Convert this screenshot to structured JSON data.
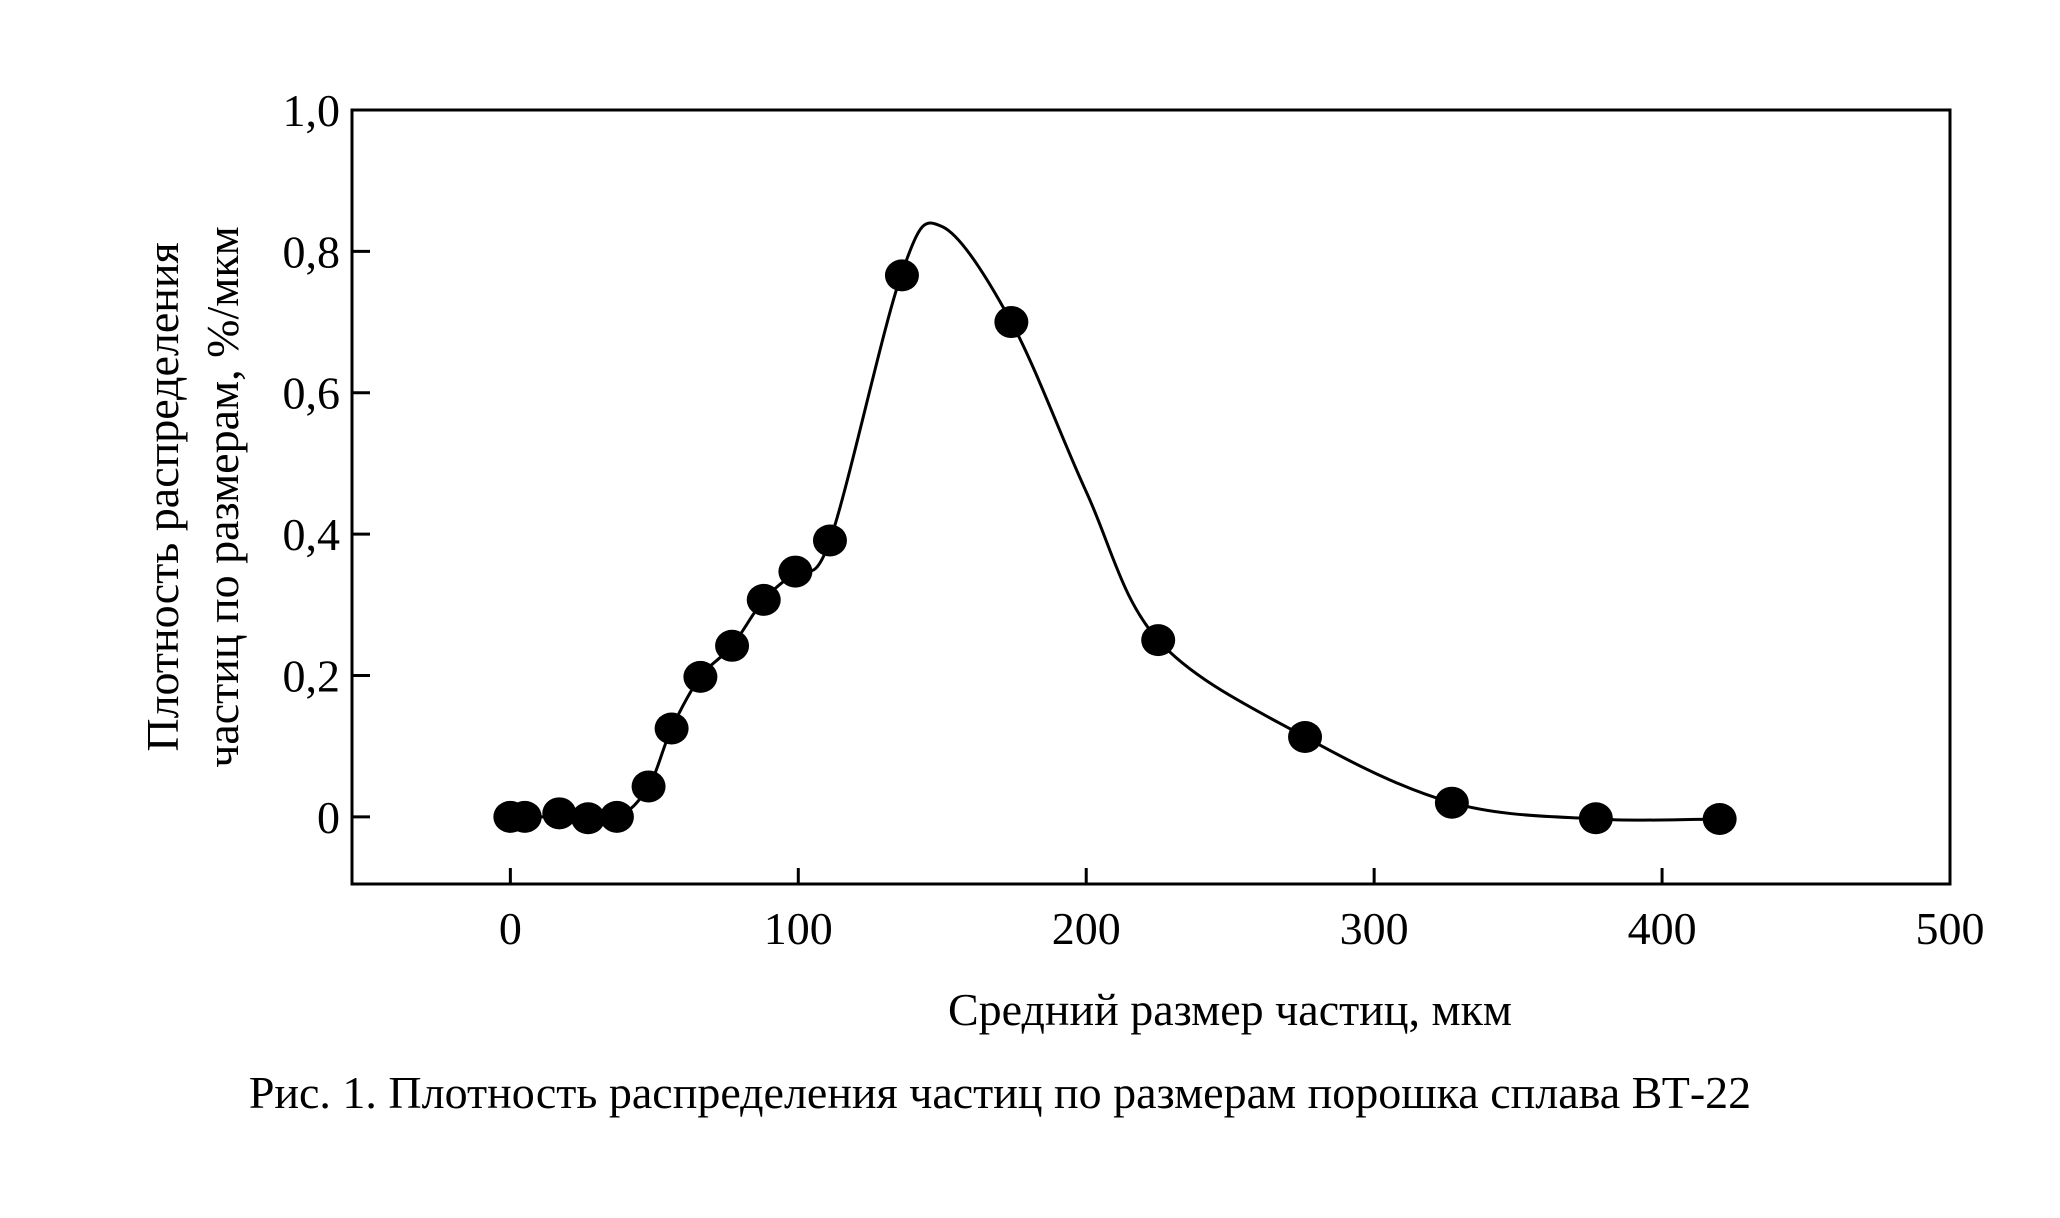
{
  "chart_data": {
    "type": "scatter",
    "title": "",
    "xlabel": "Средний размер частиц, мкм",
    "ylabel_line1": "Плотность распределения",
    "ylabel_line2": "частиц по размерам, %/мкм",
    "xlim": [
      -55,
      500
    ],
    "ylim": [
      -0.095,
      1.0
    ],
    "x_ticks": [
      0,
      100,
      200,
      300,
      400,
      500
    ],
    "x_tick_labels": [
      "0",
      "100",
      "200",
      "300",
      "400",
      "500"
    ],
    "y_ticks": [
      0,
      0.2,
      0.4,
      0.6,
      0.8,
      1.0
    ],
    "y_tick_labels": [
      "0",
      "0,2",
      "0,4",
      "0,6",
      "0,8",
      "1,0"
    ],
    "grid": false,
    "series": [
      {
        "marker": "filled-circle",
        "color": "#000000",
        "x": [
          0,
          5,
          17,
          27,
          37,
          48,
          56,
          66,
          77,
          88,
          99,
          111,
          136,
          174,
          225,
          276,
          327,
          377,
          420
        ],
        "y": [
          0.0,
          0.0,
          0.005,
          -0.002,
          0.0,
          0.043,
          0.125,
          0.198,
          0.242,
          0.307,
          0.347,
          0.391,
          0.766,
          0.7,
          0.25,
          0.113,
          0.02,
          -0.002,
          -0.003
        ]
      }
    ],
    "fit_curve": {
      "color": "#000000",
      "x": [
        0,
        20,
        37,
        48,
        56,
        66,
        77,
        88,
        99,
        111,
        136,
        150,
        174,
        200,
        225,
        276,
        327,
        377,
        420
      ],
      "y": [
        0.0,
        0.0,
        0.0,
        0.043,
        0.125,
        0.198,
        0.242,
        0.307,
        0.347,
        0.391,
        0.77,
        0.835,
        0.7,
        0.46,
        0.25,
        0.113,
        0.02,
        -0.003,
        -0.003
      ]
    }
  },
  "caption": "Рис. 1. Плотность распределения частиц по размерам порошка сплава ВТ-22"
}
